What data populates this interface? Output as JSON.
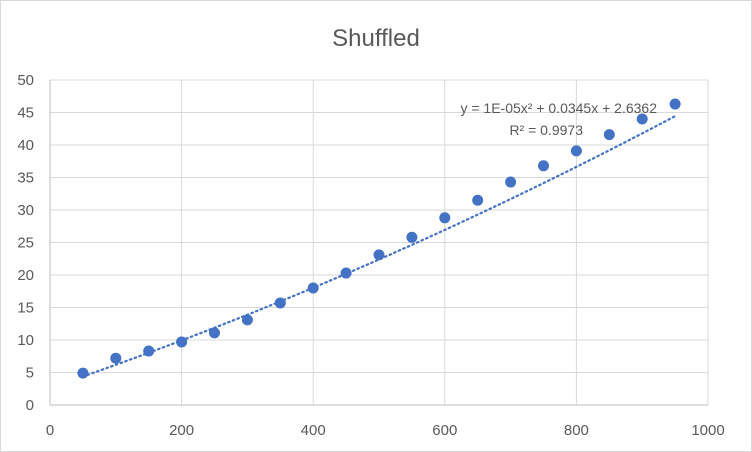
{
  "chart_data": {
    "type": "scatter",
    "title": "Shuffled",
    "xlabel": "",
    "ylabel": "",
    "xlim": [
      0,
      1000
    ],
    "ylim": [
      0,
      50
    ],
    "x_ticks": [
      0,
      200,
      400,
      600,
      800,
      1000
    ],
    "y_ticks": [
      0,
      5,
      10,
      15,
      20,
      25,
      30,
      35,
      40,
      45,
      50
    ],
    "grid": true,
    "series": [
      {
        "color": "#4472c4",
        "x": [
          50,
          100,
          150,
          200,
          250,
          300,
          350,
          400,
          450,
          500,
          550,
          600,
          650,
          700,
          750,
          800,
          850,
          900,
          950
        ],
        "y": [
          4.9,
          7.2,
          8.3,
          9.7,
          11.1,
          13.1,
          15.7,
          18.0,
          20.3,
          23.1,
          25.8,
          28.8,
          31.5,
          34.3,
          36.8,
          39.1,
          41.6,
          44.0,
          46.3
        ]
      }
    ],
    "trendline": {
      "type": "polynomial",
      "coefficients": {
        "a": 1e-05,
        "b": 0.0345,
        "c": 2.6362
      },
      "equation_label": "y = 1E-05x² + 0.0345x + 2.6362",
      "r2_label": "R² = 0.9973",
      "color": "#4472c4",
      "style": "dotted"
    }
  }
}
